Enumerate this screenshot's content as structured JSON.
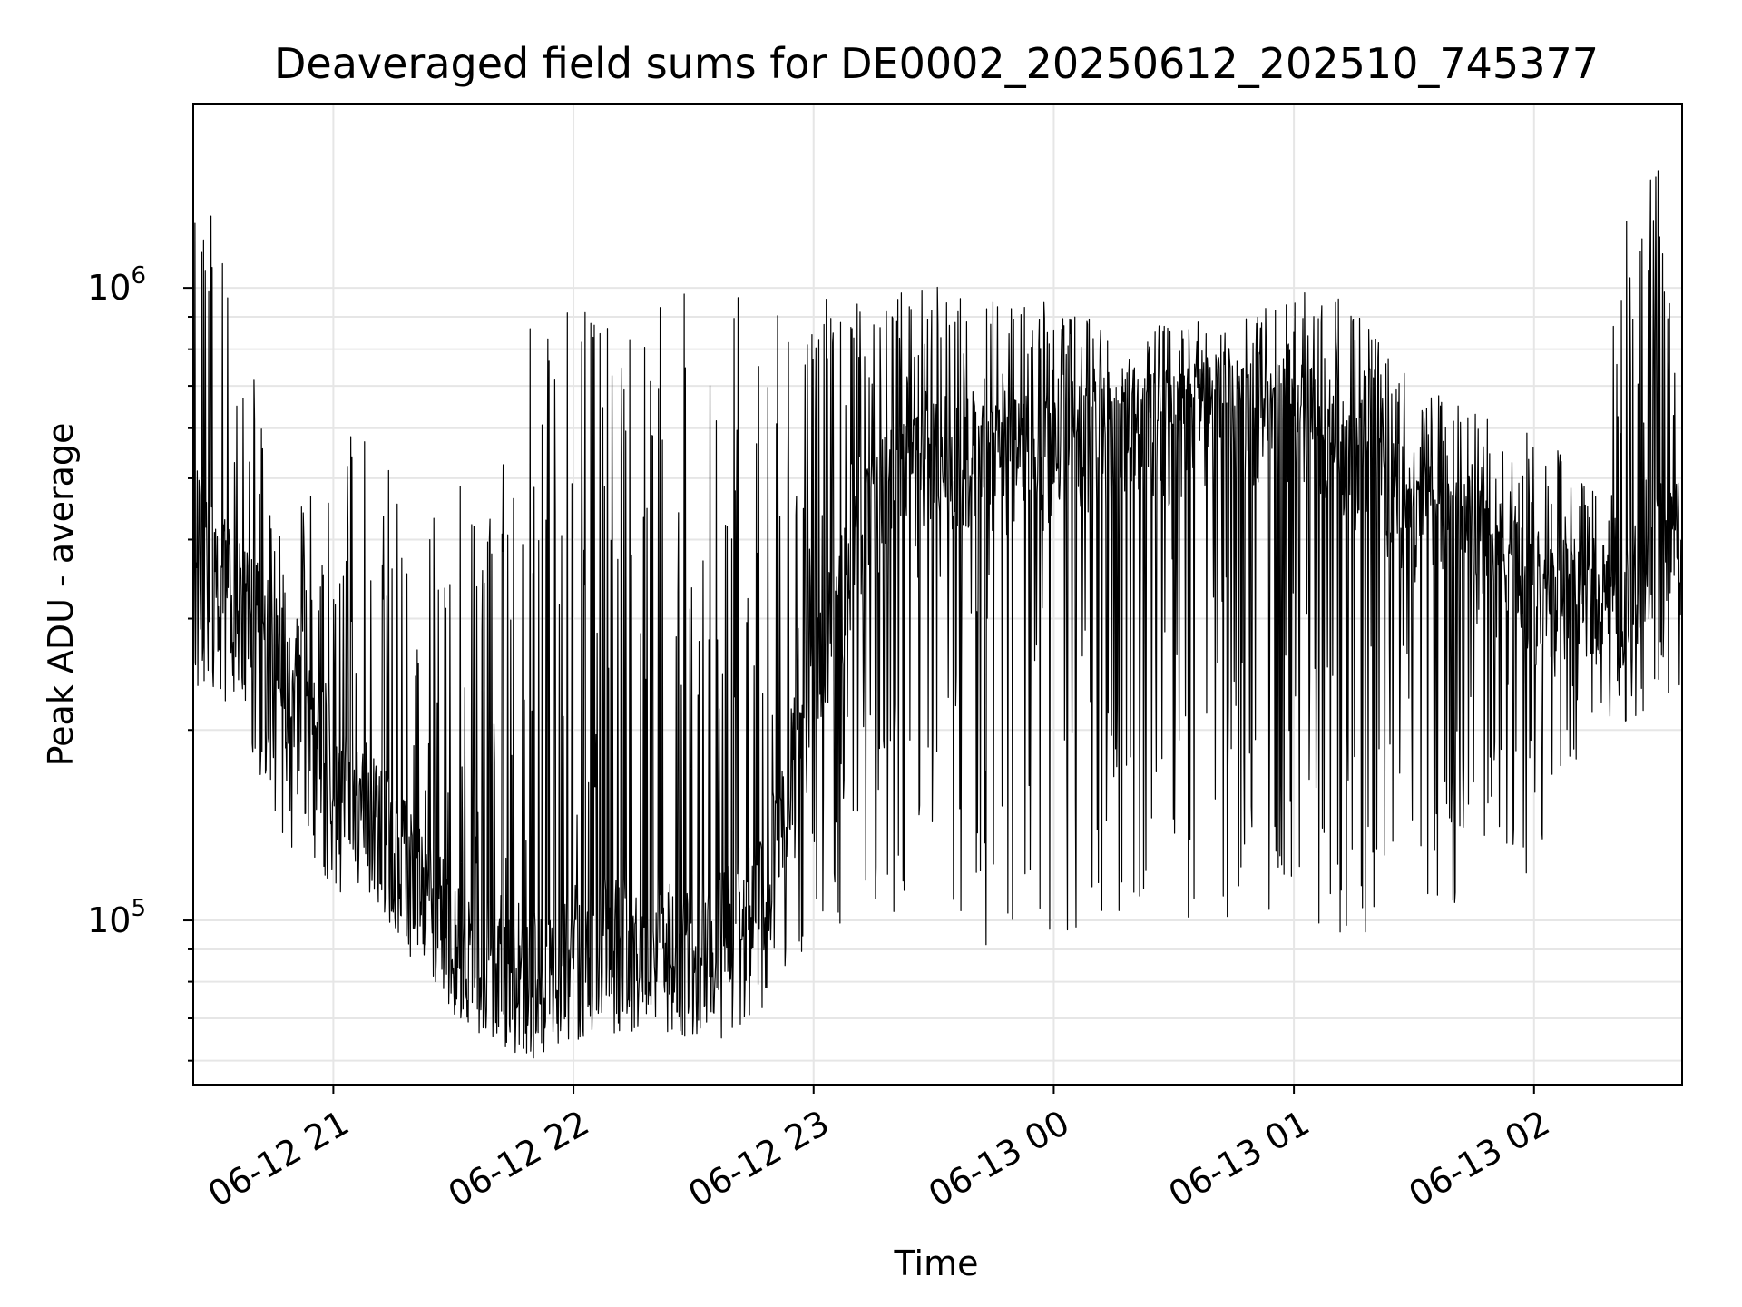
{
  "chart_data": {
    "type": "line",
    "title": "Deaveraged field sums for DE0002_20250612_202510_745377",
    "xlabel": "Time",
    "ylabel": "Peak ADU - average",
    "yscale": "log",
    "grid": true,
    "line_color": "#000000",
    "grid_color": "#e6e6e6",
    "xlim": [
      "2025-06-12 20:25",
      "2025-06-13 02:37"
    ],
    "ylim": [
      55000,
      1950000
    ],
    "x_ticks": [
      {
        "value": "2025-06-12 21:00",
        "label": "06-12 21"
      },
      {
        "value": "2025-06-12 22:00",
        "label": "06-12 22"
      },
      {
        "value": "2025-06-12 23:00",
        "label": "06-12 23"
      },
      {
        "value": "2025-06-13 00:00",
        "label": "06-13 00"
      },
      {
        "value": "2025-06-13 01:00",
        "label": "06-13 01"
      },
      {
        "value": "2025-06-13 02:00",
        "label": "06-13 02"
      }
    ],
    "y_major_ticks": [
      {
        "value": 100000,
        "base": "10",
        "exponent": "5"
      },
      {
        "value": 1000000,
        "base": "10",
        "exponent": "6"
      }
    ],
    "y_minor_ticks": [
      60000,
      70000,
      80000,
      90000,
      200000,
      300000,
      400000,
      500000,
      600000,
      700000,
      800000,
      900000
    ],
    "envelope": [
      {
        "x": "2025-06-12 20:25",
        "base": 420000,
        "max": 1500000,
        "min": 230000
      },
      {
        "x": "2025-06-12 20:35",
        "base": 330000,
        "max": 1100000,
        "min": 220000
      },
      {
        "x": "2025-06-12 20:45",
        "base": 270000,
        "max": 480000,
        "min": 140000
      },
      {
        "x": "2025-06-12 21:00",
        "base": 170000,
        "max": 480000,
        "min": 110000
      },
      {
        "x": "2025-06-12 21:10",
        "base": 150000,
        "max": 800000,
        "min": 110000
      },
      {
        "x": "2025-06-12 21:20",
        "base": 120000,
        "max": 350000,
        "min": 85000
      },
      {
        "x": "2025-06-12 21:30",
        "base": 95000,
        "max": 550000,
        "min": 70000
      },
      {
        "x": "2025-06-12 21:40",
        "base": 85000,
        "max": 450000,
        "min": 63000
      },
      {
        "x": "2025-06-12 21:50",
        "base": 82000,
        "max": 950000,
        "min": 60000
      },
      {
        "x": "2025-06-12 22:00",
        "base": 90000,
        "max": 950000,
        "min": 63000
      },
      {
        "x": "2025-06-12 22:10",
        "base": 95000,
        "max": 950000,
        "min": 65000
      },
      {
        "x": "2025-06-12 22:20",
        "base": 95000,
        "max": 950000,
        "min": 65000
      },
      {
        "x": "2025-06-12 22:30",
        "base": 90000,
        "max": 1000000,
        "min": 64000
      },
      {
        "x": "2025-06-12 22:40",
        "base": 100000,
        "max": 1000000,
        "min": 65000
      },
      {
        "x": "2025-06-12 22:50",
        "base": 130000,
        "max": 1000000,
        "min": 75000
      },
      {
        "x": "2025-06-12 23:00",
        "base": 250000,
        "max": 950000,
        "min": 95000
      },
      {
        "x": "2025-06-12 23:15",
        "base": 450000,
        "max": 1000000,
        "min": 100000
      },
      {
        "x": "2025-06-12 23:30",
        "base": 550000,
        "max": 1020000,
        "min": 100000
      },
      {
        "x": "2025-06-12 23:45",
        "base": 550000,
        "max": 950000,
        "min": 90000
      },
      {
        "x": "2025-06-13 00:00",
        "base": 550000,
        "max": 950000,
        "min": 95000
      },
      {
        "x": "2025-06-13 00:15",
        "base": 600000,
        "max": 900000,
        "min": 100000
      },
      {
        "x": "2025-06-13 00:30",
        "base": 600000,
        "max": 880000,
        "min": 100000
      },
      {
        "x": "2025-06-13 00:45",
        "base": 650000,
        "max": 900000,
        "min": 100000
      },
      {
        "x": "2025-06-13 01:00",
        "base": 650000,
        "max": 1000000,
        "min": 100000
      },
      {
        "x": "2025-06-13 01:15",
        "base": 550000,
        "max": 950000,
        "min": 90000
      },
      {
        "x": "2025-06-13 01:30",
        "base": 450000,
        "max": 700000,
        "min": 100000
      },
      {
        "x": "2025-06-13 01:45",
        "base": 400000,
        "max": 650000,
        "min": 110000
      },
      {
        "x": "2025-06-13 02:00",
        "base": 330000,
        "max": 600000,
        "min": 120000
      },
      {
        "x": "2025-06-13 02:15",
        "base": 330000,
        "max": 500000,
        "min": 200000
      },
      {
        "x": "2025-06-13 02:22",
        "base": 300000,
        "max": 1300000,
        "min": 200000
      },
      {
        "x": "2025-06-13 02:30",
        "base": 400000,
        "max": 1600000,
        "min": 220000
      },
      {
        "x": "2025-06-13 02:37",
        "base": 380000,
        "max": 1200000,
        "min": 230000
      }
    ]
  }
}
